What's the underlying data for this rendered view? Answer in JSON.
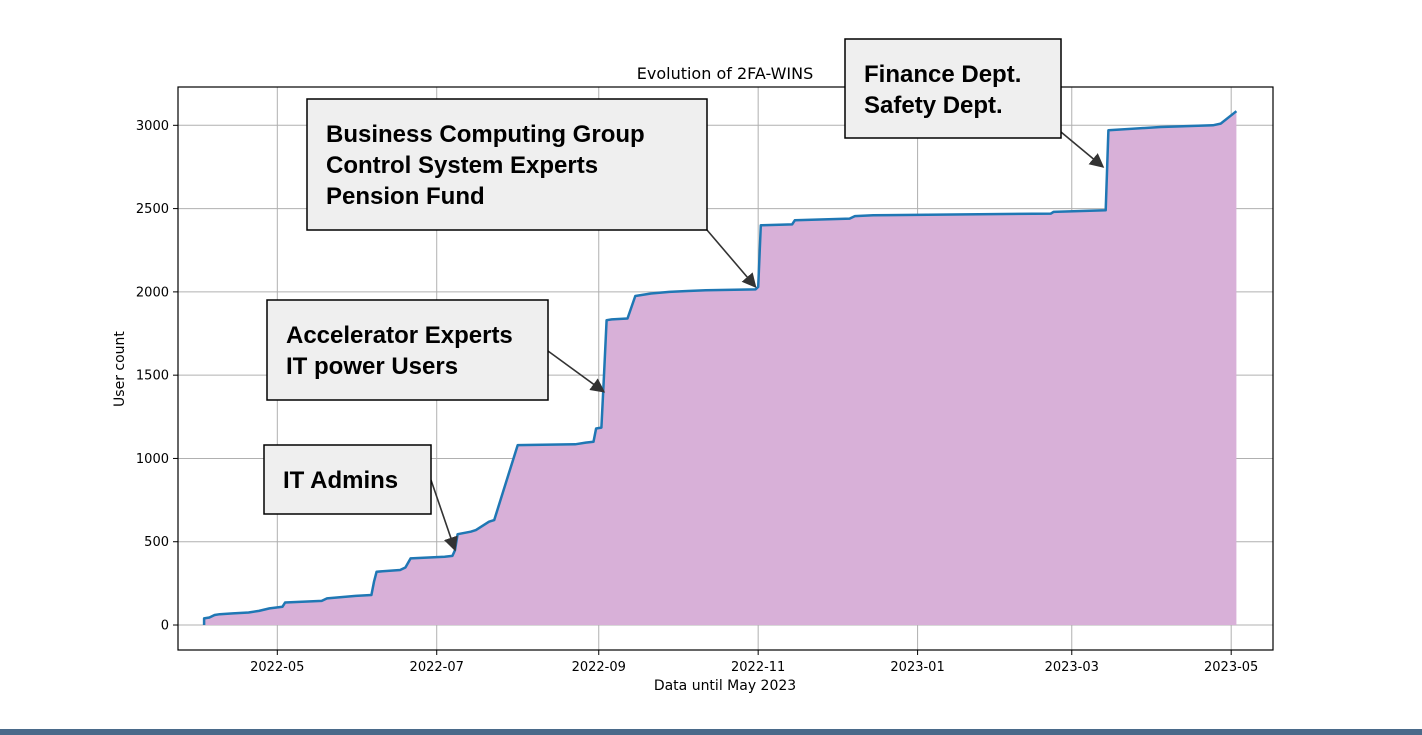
{
  "chart_data": {
    "type": "area",
    "title": "Evolution of 2FA-WINS",
    "xlabel": "Data until May 2023",
    "ylabel": "User count",
    "x_ticks": [
      "2022-05",
      "2022-07",
      "2022-09",
      "2022-11",
      "2023-01",
      "2023-03",
      "2023-05"
    ],
    "y_ticks": [
      0,
      500,
      1000,
      1500,
      2000,
      2500,
      3000
    ],
    "xlim": [
      "2022-03-24",
      "2023-05-17"
    ],
    "ylim": [
      -150,
      3230
    ],
    "grid": true,
    "colors": {
      "line": "#1f77b4",
      "fill": "#d8b0d8",
      "annotation_box": "#efefef"
    },
    "series": [
      {
        "x": [
          "2022-04-03",
          "2022-04-03",
          "2022-04-05",
          "2022-04-07",
          "2022-04-09",
          "2022-04-14",
          "2022-04-20",
          "2022-04-24",
          "2022-04-28",
          "2022-05-03",
          "2022-05-04",
          "2022-05-18",
          "2022-05-20",
          "2022-05-31",
          "2022-06-06",
          "2022-06-07",
          "2022-06-08",
          "2022-06-17",
          "2022-06-19",
          "2022-06-21",
          "2022-07-04",
          "2022-07-07",
          "2022-07-08",
          "2022-07-09",
          "2022-07-14",
          "2022-07-16",
          "2022-07-21",
          "2022-07-23",
          "2022-08-01",
          "2022-08-23",
          "2022-08-27",
          "2022-08-30",
          "2022-08-31",
          "2022-09-02",
          "2022-09-03",
          "2022-09-04",
          "2022-09-06",
          "2022-09-12",
          "2022-09-15",
          "2022-09-21",
          "2022-09-28",
          "2022-10-05",
          "2022-10-12",
          "2022-10-31",
          "2022-11-01",
          "2022-11-02",
          "2022-11-14",
          "2022-11-15",
          "2022-12-06",
          "2022-12-08",
          "2022-12-15",
          "2023-02-21",
          "2023-02-22",
          "2023-03-14",
          "2023-03-15",
          "2023-04-04",
          "2023-04-24",
          "2023-04-27",
          "2023-05-03"
        ],
        "y": [
          0,
          40,
          45,
          60,
          65,
          70,
          75,
          85,
          100,
          110,
          135,
          145,
          160,
          175,
          180,
          260,
          320,
          330,
          345,
          400,
          410,
          415,
          450,
          545,
          560,
          570,
          620,
          630,
          1080,
          1085,
          1095,
          1100,
          1180,
          1185,
          1500,
          1830,
          1835,
          1840,
          1975,
          1990,
          2000,
          2005,
          2010,
          2015,
          2030,
          2400,
          2405,
          2430,
          2440,
          2455,
          2460,
          2470,
          2480,
          2490,
          2970,
          2990,
          3000,
          3010,
          3085
        ]
      }
    ],
    "annotations": [
      {
        "lines": [
          "IT Admins"
        ],
        "target": {
          "x": "2022-07-08",
          "y": 450
        }
      },
      {
        "lines": [
          "Accelerator Experts",
          "IT power Users"
        ],
        "target": {
          "x": "2022-09-03",
          "y": 1400
        }
      },
      {
        "lines": [
          "Business Computing Group",
          "Control System Experts",
          "Pension Fund"
        ],
        "target": {
          "x": "2022-10-31",
          "y": 2030
        }
      },
      {
        "lines": [
          "Finance Dept.",
          "Safety Dept."
        ],
        "target": {
          "x": "2023-03-13",
          "y": 2750
        }
      }
    ]
  }
}
